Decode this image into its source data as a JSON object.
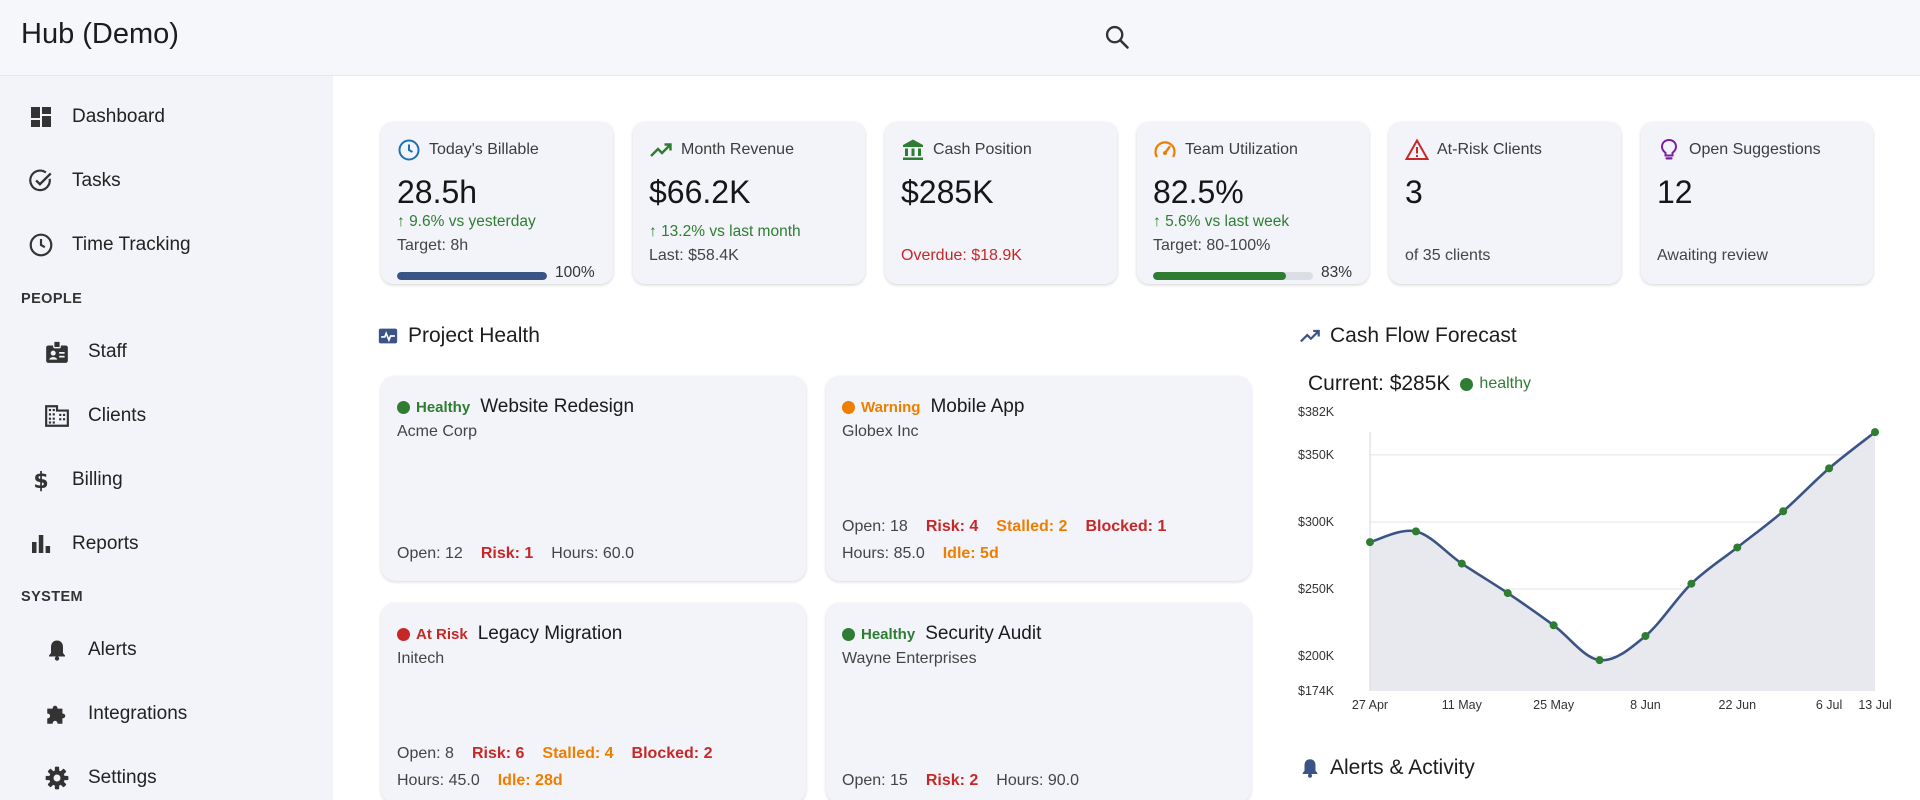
{
  "app": {
    "title": "Hub (Demo)"
  },
  "header": {
    "search_icon": "search-icon"
  },
  "sidebar": {
    "items": [
      {
        "label": "Dashboard",
        "icon": "dashboard-icon"
      },
      {
        "label": "Tasks",
        "icon": "check-circle-icon"
      },
      {
        "label": "Time Tracking",
        "icon": "clock-icon"
      }
    ],
    "sections": [
      {
        "title": "PEOPLE",
        "items": [
          {
            "label": "Staff",
            "icon": "badge-icon"
          },
          {
            "label": "Clients",
            "icon": "building-icon"
          },
          {
            "label": "Billing",
            "icon": "dollar-icon"
          },
          {
            "label": "Reports",
            "icon": "bar-chart-icon"
          }
        ]
      },
      {
        "title": "SYSTEM",
        "items": [
          {
            "label": "Alerts",
            "icon": "bell-icon"
          },
          {
            "label": "Integrations",
            "icon": "puzzle-icon"
          },
          {
            "label": "Settings",
            "icon": "gear-icon"
          }
        ]
      }
    ]
  },
  "kpis": [
    {
      "title": "Today's Billable",
      "icon": "clock-icon",
      "value": "28.5h",
      "trend": "9.6% vs yesterday",
      "sub": "Target: 8h",
      "progress": 100,
      "progress_label": "100%",
      "bar_color": "#3b5486"
    },
    {
      "title": "Month Revenue",
      "icon": "trending-up-icon",
      "value": "$66.2K",
      "trend": "13.2% vs last month",
      "sub": "Last: $58.4K"
    },
    {
      "title": "Cash Position",
      "icon": "bank-icon",
      "value": "$285K",
      "sub": "Overdue: $18.9K"
    },
    {
      "title": "Team Utilization",
      "icon": "speedometer-icon",
      "value": "82.5%",
      "trend": "5.6% vs last week",
      "sub": "Target: 80-100%",
      "progress": 83,
      "progress_label": "83%",
      "bar_color": "#2e7d32"
    },
    {
      "title": "At-Risk Clients",
      "icon": "warning-icon",
      "value": "3",
      "sub": "of 35 clients"
    },
    {
      "title": "Open Suggestions",
      "icon": "lightbulb-icon",
      "value": "12",
      "sub": "Awaiting review"
    }
  ],
  "project_health": {
    "title": "Project Health",
    "projects": [
      {
        "status": "Healthy",
        "status_color": "#2e7d32",
        "name": "Website Redesign",
        "client": "Acme Corp",
        "row1": [],
        "row2": [
          {
            "text": "Open: 12",
            "kind": "normal"
          },
          {
            "text": "Risk: 1",
            "kind": "red"
          },
          {
            "text": "Hours: 60.0",
            "kind": "normal"
          }
        ]
      },
      {
        "status": "Warning",
        "status_color": "#ef7d00",
        "name": "Mobile App",
        "client": "Globex Inc",
        "row1": [
          {
            "text": "Open: 18",
            "kind": "normal"
          },
          {
            "text": "Risk: 4",
            "kind": "red"
          },
          {
            "text": "Stalled: 2",
            "kind": "orange"
          },
          {
            "text": "Blocked: 1",
            "kind": "red"
          }
        ],
        "row2": [
          {
            "text": "Hours: 85.0",
            "kind": "normal"
          },
          {
            "text": "Idle: 5d",
            "kind": "orange"
          }
        ]
      },
      {
        "status": "At Risk",
        "status_color": "#c62828",
        "name": "Legacy Migration",
        "client": "Initech",
        "row1": [
          {
            "text": "Open: 8",
            "kind": "normal"
          },
          {
            "text": "Risk: 6",
            "kind": "red"
          },
          {
            "text": "Stalled: 4",
            "kind": "orange"
          },
          {
            "text": "Blocked: 2",
            "kind": "red"
          }
        ],
        "row2": [
          {
            "text": "Hours: 45.0",
            "kind": "normal"
          },
          {
            "text": "Idle: 28d",
            "kind": "orange"
          }
        ]
      },
      {
        "status": "Healthy",
        "status_color": "#2e7d32",
        "name": "Security Audit",
        "client": "Wayne Enterprises",
        "row1": [],
        "row2": [
          {
            "text": "Open: 15",
            "kind": "normal"
          },
          {
            "text": "Risk: 2",
            "kind": "red"
          },
          {
            "text": "Hours: 90.0",
            "kind": "normal"
          }
        ]
      }
    ]
  },
  "cash_flow": {
    "title": "Cash Flow Forecast",
    "current_label": "Current: $285K",
    "status": "healthy",
    "status_color": "#2e7d32"
  },
  "alerts": {
    "title": "Alerts & Activity"
  },
  "chart_data": {
    "type": "area",
    "title": "",
    "xlabel": "",
    "ylabel": "",
    "ylim": [
      174000,
      382000
    ],
    "y_ticks": [
      174000,
      200000,
      250000,
      300000,
      350000,
      382000
    ],
    "y_tick_labels": [
      "$174K",
      "$200K",
      "$250K",
      "$300K",
      "$350K",
      "$382K"
    ],
    "x_tick_labels": [
      "27 Apr",
      "11 May",
      "25 May",
      "8 Jun",
      "22 Jun",
      "6 Jul",
      "13 Jul"
    ],
    "x_tick_dates": [
      "2024-04-27",
      "2024-05-11",
      "2024-05-25",
      "2024-06-08",
      "2024-06-22",
      "2024-07-06",
      "2024-07-13"
    ],
    "grid": true,
    "series": [
      {
        "color": "#3b5486",
        "marker_color": "#2e7d32",
        "points": [
          {
            "x": "2024-04-27",
            "y": 285000
          },
          {
            "x": "2024-05-04",
            "y": 293000
          },
          {
            "x": "2024-05-11",
            "y": 269000
          },
          {
            "x": "2024-05-18",
            "y": 247000
          },
          {
            "x": "2024-05-25",
            "y": 223000
          },
          {
            "x": "2024-06-01",
            "y": 197000
          },
          {
            "x": "2024-06-08",
            "y": 215000
          },
          {
            "x": "2024-06-15",
            "y": 254000
          },
          {
            "x": "2024-06-22",
            "y": 281000
          },
          {
            "x": "2024-06-29",
            "y": 308000
          },
          {
            "x": "2024-07-06",
            "y": 340000
          },
          {
            "x": "2024-07-13",
            "y": 367000
          }
        ]
      }
    ]
  }
}
